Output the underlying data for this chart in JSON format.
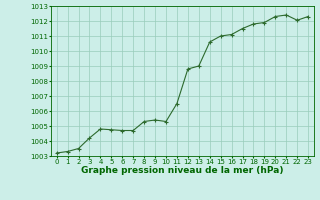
{
  "x": [
    0,
    1,
    2,
    3,
    4,
    5,
    6,
    7,
    8,
    9,
    10,
    11,
    12,
    13,
    14,
    15,
    16,
    17,
    18,
    19,
    20,
    21,
    22,
    23
  ],
  "y": [
    1003.2,
    1003.3,
    1003.5,
    1004.2,
    1004.8,
    1004.75,
    1004.7,
    1004.7,
    1005.3,
    1005.4,
    1005.3,
    1006.5,
    1008.8,
    1009.0,
    1010.6,
    1011.0,
    1011.1,
    1011.5,
    1011.8,
    1011.9,
    1012.3,
    1012.4,
    1012.05,
    1012.3
  ],
  "ylim": [
    1003,
    1013
  ],
  "yticks": [
    1003,
    1004,
    1005,
    1006,
    1007,
    1008,
    1009,
    1010,
    1011,
    1012,
    1013
  ],
  "xlim": [
    -0.5,
    23.5
  ],
  "xticks": [
    0,
    1,
    2,
    3,
    4,
    5,
    6,
    7,
    8,
    9,
    10,
    11,
    12,
    13,
    14,
    15,
    16,
    17,
    18,
    19,
    20,
    21,
    22,
    23
  ],
  "line_color": "#2d6a2d",
  "marker": "+",
  "bg_color": "#cceee8",
  "grid_color": "#99ccbb",
  "xlabel": "Graphe pression niveau de la mer (hPa)",
  "xlabel_color": "#006600",
  "tick_color": "#006600",
  "tick_fontsize": 5.0,
  "xlabel_fontsize": 6.5,
  "line_width": 0.8,
  "marker_size": 3.5,
  "marker_edge_width": 0.8
}
